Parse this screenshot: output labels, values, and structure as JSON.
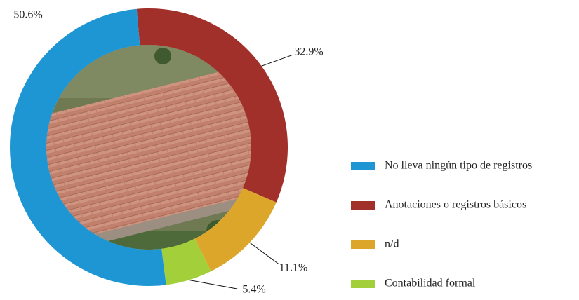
{
  "chart_data": {
    "type": "donut",
    "categories": [
      "No lleva ningún tipo de registros",
      "Anotaciones o registros básicos",
      "n/d",
      "Contabilidad formal"
    ],
    "values": [
      50.6,
      32.9,
      11.1,
      5.4
    ],
    "value_labels": [
      "50.6%",
      "32.9%",
      "11.1%",
      "5.4%"
    ],
    "colors": [
      "#1e96d4",
      "#a12f2a",
      "#dca62b",
      "#a3cf3b"
    ],
    "legend": "right"
  }
}
